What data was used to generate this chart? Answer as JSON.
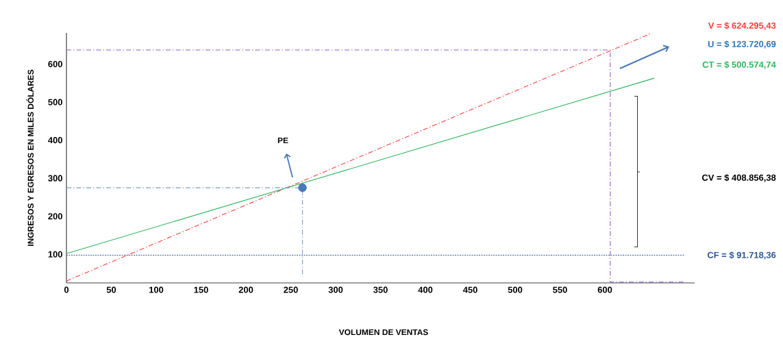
{
  "chart_data": {
    "type": "line",
    "xlabel": "VOLUMEN DE VENTAS",
    "ylabel": "INGRESOS Y EGRESOS EN MILES DÓLARES",
    "xlim": [
      0,
      700
    ],
    "ylim": [
      25,
      682
    ],
    "xticks": [
      0,
      50,
      100,
      150,
      200,
      250,
      300,
      350,
      400,
      450,
      500,
      550,
      600
    ],
    "yticks": [
      100,
      200,
      300,
      400,
      500,
      600
    ],
    "grid": false,
    "series": [
      {
        "name": "V = $ 624.295,43",
        "color": "#ff3b3b",
        "x": [
          0,
          651
        ],
        "values": [
          30,
          680
        ],
        "line_style": "dashed"
      },
      {
        "name": "CT = $ 500.574,74",
        "color": "#2db45c",
        "x": [
          0,
          655
        ],
        "values": [
          102,
          563
        ],
        "line_style": "solid"
      },
      {
        "name": "CF = $ 91.718,36",
        "color": "#2f5597",
        "x": [
          0,
          689
        ],
        "values": [
          98,
          98
        ],
        "line_style": "dotted"
      },
      {
        "color": "#7a9ccc",
        "x": [
          0,
          263,
          263
        ],
        "values": [
          275,
          275,
          41
        ],
        "line_style": "dashed"
      },
      {
        "color": "#8e5fc2",
        "x": [
          0,
          606,
          606,
          689
        ],
        "values": [
          637,
          637,
          27,
          27
        ],
        "line_style": "dashed"
      },
      {
        "type": "scatter",
        "color": "#4a78b8",
        "x": [
          263
        ],
        "values": [
          275
        ],
        "marker": "circle"
      }
    ],
    "annotations": [
      "U = $ 123.720,69",
      "CV = $ 408.856,38",
      "PE"
    ]
  }
}
